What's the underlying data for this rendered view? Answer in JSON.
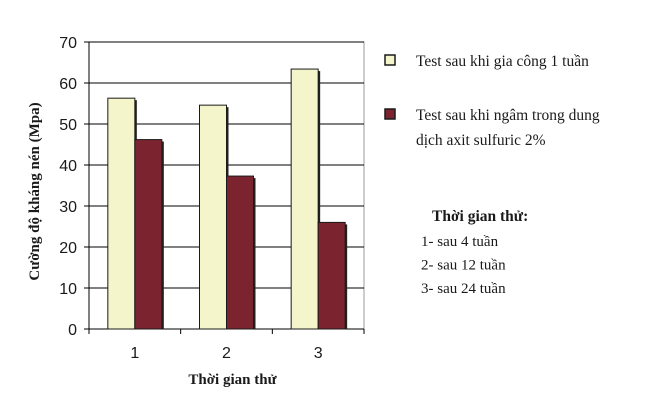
{
  "chart_data": {
    "type": "bar",
    "categories": [
      "1",
      "2",
      "3"
    ],
    "series": [
      {
        "name": "Test sau khi gia công 1 tuần",
        "values": [
          56.3,
          54.6,
          63.4
        ],
        "color": "#F5F5CC"
      },
      {
        "name": "Test sau khi ngâm trong dung dịch axit sulfuric 2%",
        "values": [
          46.2,
          37.3,
          26.0
        ],
        "color": "#7B2430"
      }
    ],
    "legend_lines": [
      [
        "Test sau khi gia công 1 tuần"
      ],
      [
        "Test sau khi ngâm trong dung",
        "dịch axit sulfuric 2%"
      ]
    ],
    "xlabel": "Thời gian thử",
    "ylabel": "Cường độ kháng nén (Mpa)",
    "ylim": [
      0,
      70
    ],
    "yticks": [
      0,
      10,
      20,
      30,
      40,
      50,
      60,
      70
    ],
    "grid": true,
    "legend_position": "right",
    "plot_background": "#ffffff",
    "gridline_color": "#000000"
  },
  "notes": {
    "title": "Thời gian thử:",
    "lines": [
      "1- sau 4 tuần",
      "2- sau 12 tuần",
      "3- sau 24 tuần"
    ]
  }
}
